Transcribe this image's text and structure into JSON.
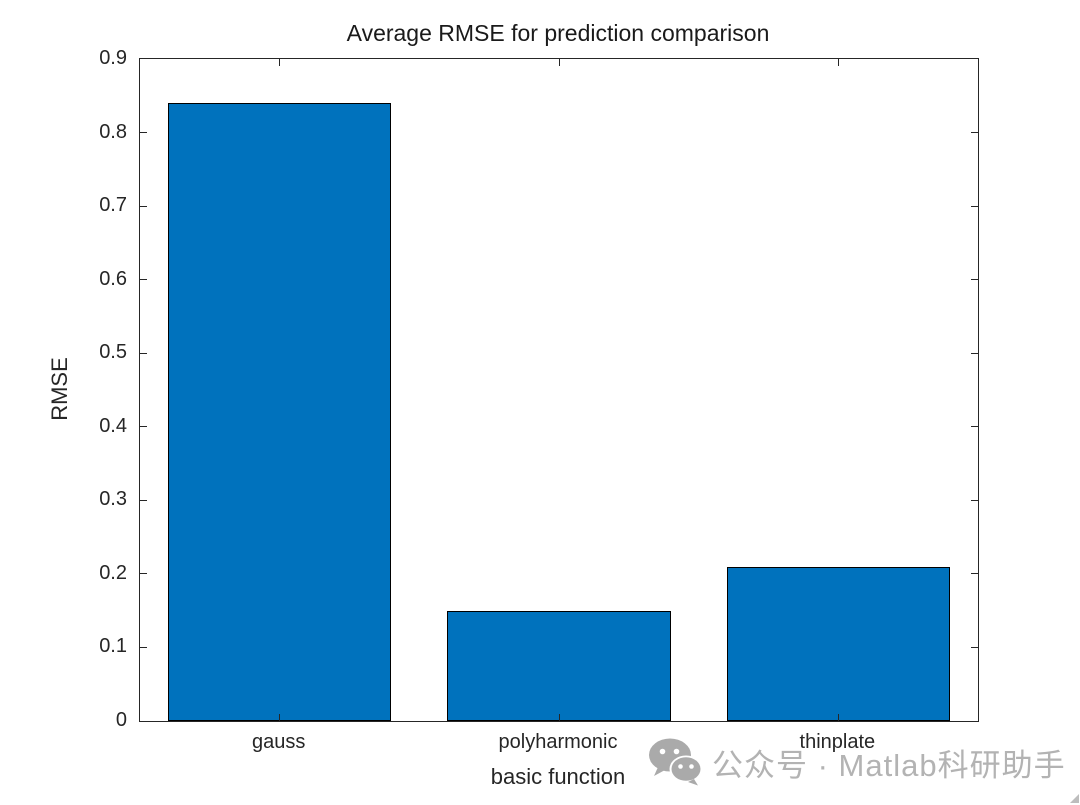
{
  "figure": {
    "background": "#ffffff"
  },
  "watermark": {
    "icon": "wechat-icon",
    "text": "公众号 · Matlab科研助手",
    "color": "#b3b3b3"
  },
  "chart_data": {
    "type": "bar",
    "title": "Average RMSE for prediction comparison",
    "xlabel": "basic function",
    "ylabel": "RMSE",
    "categories": [
      "gauss",
      "polyharmonic",
      "thinplate"
    ],
    "values": [
      0.84,
      0.15,
      0.21
    ],
    "ylim": [
      0,
      0.9
    ],
    "ytick_labels": [
      "0",
      "0.1",
      "0.2",
      "0.3",
      "0.4",
      "0.5",
      "0.6",
      "0.7",
      "0.8",
      "0.9"
    ],
    "bar_color": "#0072BD",
    "bar_edge_color": "#000000",
    "axis_color": "#262626",
    "bar_width_fraction": 0.8,
    "grid": false,
    "legend": null
  }
}
